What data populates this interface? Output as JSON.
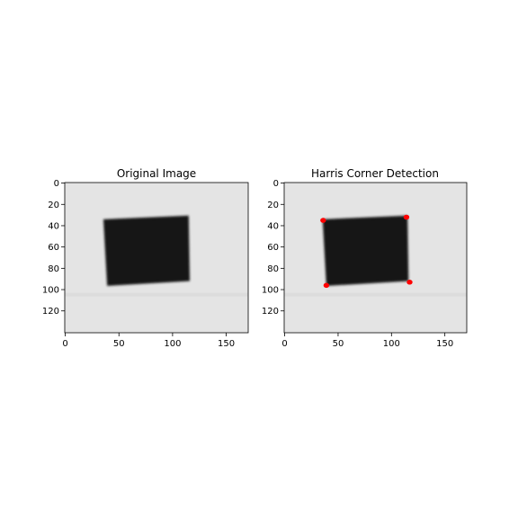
{
  "panels": [
    {
      "title": "Original Image",
      "x_ticks": [
        0,
        50,
        100,
        150
      ],
      "y_ticks": [
        0,
        20,
        40,
        60,
        80,
        100,
        120
      ],
      "xlim": [
        -0.5,
        170.5
      ],
      "ylim": [
        140.5,
        -0.5
      ],
      "image": {
        "background": "#e4e4e4",
        "object_color": "#141414",
        "square_corners": [
          [
            35.5,
            34
          ],
          [
            115,
            30.5
          ],
          [
            116,
            92
          ],
          [
            39,
            96.5
          ]
        ]
      },
      "corners": []
    },
    {
      "title": "Harris Corner Detection",
      "x_ticks": [
        0,
        50,
        100,
        150
      ],
      "y_ticks": [
        0,
        20,
        40,
        60,
        80,
        100,
        120
      ],
      "xlim": [
        -0.5,
        170.5
      ],
      "ylim": [
        140.5,
        -0.5
      ],
      "image": {
        "background": "#e4e4e4",
        "object_color": "#141414",
        "square_corners": [
          [
            35.5,
            34
          ],
          [
            115,
            30.5
          ],
          [
            116,
            92
          ],
          [
            39,
            96.5
          ]
        ]
      },
      "corners": [
        {
          "x": 36,
          "y": 35
        },
        {
          "x": 114,
          "y": 32
        },
        {
          "x": 117,
          "y": 93
        },
        {
          "x": 39,
          "y": 96
        }
      ],
      "corner_color": "#ff0000"
    }
  ]
}
